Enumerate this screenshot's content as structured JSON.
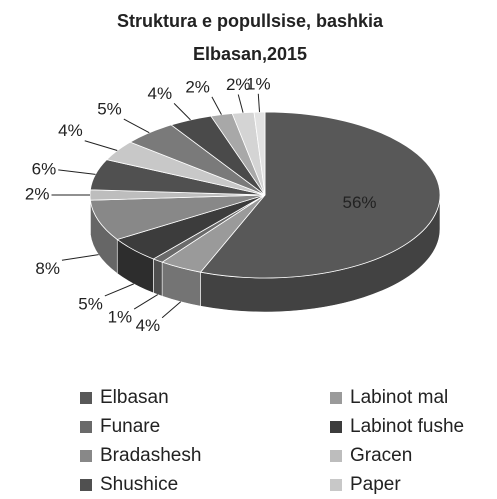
{
  "chart_data": {
    "type": "pie3d",
    "title": [
      "Struktura e popullsise,  bashkia",
      "Elbasan,2015"
    ],
    "categories": [
      "Elbasan",
      "Labinot mal",
      "Funare",
      "Labinot fushe",
      "Bradashesh",
      "Gracen",
      "Shushice",
      "Paper",
      null,
      null,
      null,
      null,
      null
    ],
    "values": [
      56,
      4,
      1,
      5,
      8,
      2,
      6,
      4,
      5,
      4,
      2,
      2,
      1
    ],
    "value_labels": [
      "56%",
      "4%",
      "1%",
      "5%",
      "8%",
      "2%",
      "6%",
      "4%",
      "5%",
      "4%",
      "2%",
      "2%",
      "1%"
    ],
    "colors": [
      "#585858",
      "#9a9a9a",
      "#6a6a6a",
      "#3c3c3c",
      "#888888",
      "#bdbdbd",
      "#505050",
      "#c8c8c8",
      "#7a7a7a",
      "#4a4a4a",
      "#a8a8a8",
      "#d4d4d4",
      "#e2e2e2"
    ]
  }
}
